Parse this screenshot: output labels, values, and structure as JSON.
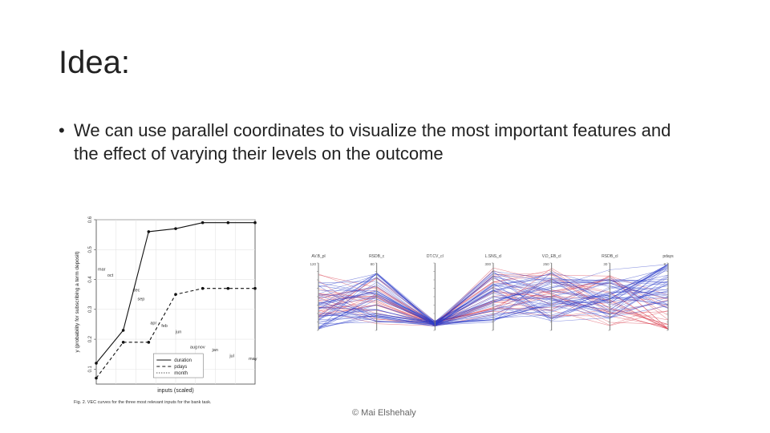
{
  "slide": {
    "title": "Idea:",
    "bullet": "We can use parallel coordinates to visualize the most important features and the effect of varying their levels on the outcome",
    "footer": "© Mai Elshehaly"
  },
  "chart_data": [
    {
      "type": "line",
      "title": "",
      "xlabel": "inputs (scaled)",
      "ylabel": "y (probability for subscribing a term deposit)",
      "ylim": [
        0.05,
        0.6
      ],
      "yticks": [
        "0.1",
        "0.2",
        "0.3",
        "0.4",
        "0.5",
        "0.6"
      ],
      "grid": true,
      "legend": {
        "position": "bottom-right",
        "entries": [
          "duration",
          "pdays",
          "month"
        ]
      },
      "series": [
        {
          "name": "duration",
          "style": "solid",
          "x": [
            0.0,
            0.17,
            0.33,
            0.5,
            0.67,
            0.83,
            1.0
          ],
          "y": [
            0.12,
            0.23,
            0.56,
            0.57,
            0.59,
            0.59,
            0.59
          ]
        },
        {
          "name": "pdays",
          "style": "dashed",
          "x": [
            0.0,
            0.17,
            0.33,
            0.5,
            0.67,
            0.83,
            1.0
          ],
          "y": [
            0.07,
            0.19,
            0.19,
            0.35,
            0.37,
            0.37,
            0.37
          ]
        },
        {
          "name": "month",
          "style": "dotted",
          "x": [],
          "y": []
        }
      ],
      "point_labels": [
        {
          "text": "mar",
          "x": 0.0,
          "y": 0.43
        },
        {
          "text": "oct",
          "x": 0.06,
          "y": 0.41
        },
        {
          "text": "dec",
          "x": 0.22,
          "y": 0.36
        },
        {
          "text": "sep",
          "x": 0.25,
          "y": 0.33
        },
        {
          "text": "apr",
          "x": 0.33,
          "y": 0.25
        },
        {
          "text": "feb",
          "x": 0.4,
          "y": 0.24
        },
        {
          "text": "jun",
          "x": 0.49,
          "y": 0.22
        },
        {
          "text": "aug",
          "x": 0.58,
          "y": 0.17
        },
        {
          "text": "nov",
          "x": 0.63,
          "y": 0.17
        },
        {
          "text": "jan",
          "x": 0.72,
          "y": 0.16
        },
        {
          "text": "jul",
          "x": 0.83,
          "y": 0.14
        },
        {
          "text": "may",
          "x": 0.95,
          "y": 0.13
        }
      ],
      "caption": "Fig. 2. VEC curves for the three most relevant inputs for the bank task."
    },
    {
      "type": "parallel_coordinates",
      "axes": [
        "AV.B_pl",
        "RSDB_c",
        "DT.CV_cl",
        "L.SNS_cl",
        "V.D_EB_cl",
        "RSDB_cl",
        "pdays"
      ],
      "axis_top_values": [
        "120",
        "80",
        "",
        "300",
        "250",
        "30",
        "8"
      ],
      "axis_bottom_values": [
        "",
        "",
        "",
        "",
        "",
        "",
        ""
      ],
      "colors": {
        "high": "#d93a4a",
        "low": "#2a3ac8",
        "axis": "#7a7a7a"
      },
      "line_groups": [
        {
          "color": "high",
          "count": 24,
          "values": [
            0.55,
            0.45,
            0.1,
            0.6,
            0.55,
            0.45,
            0.2
          ]
        },
        {
          "color": "low",
          "count": 46,
          "values": [
            0.35,
            0.5,
            0.1,
            0.5,
            0.5,
            0.55,
            0.7
          ]
        }
      ]
    }
  ]
}
